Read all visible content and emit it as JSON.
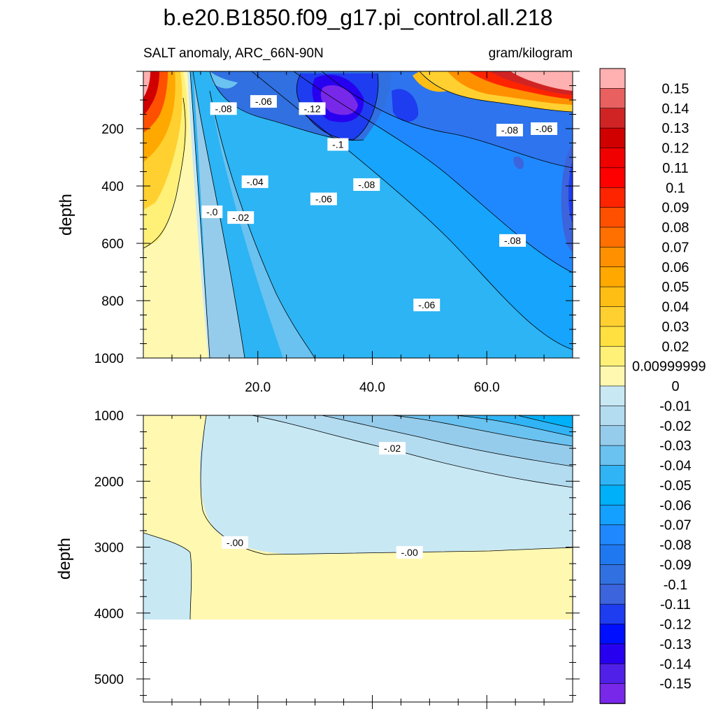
{
  "figure": {
    "title": "b.e20.B1850.f09_g17.pi_control.all.218",
    "subtitle_left": "SALT anomaly, ARC_66N-90N",
    "subtitle_right": "gram/kilogram"
  },
  "chart_data": [
    {
      "type": "heatmap",
      "panel": "upper",
      "variable": "SALT anomaly",
      "region": "ARC_66N-90N",
      "units": "gram/kilogram",
      "ylabel": "depth",
      "xlabel": "",
      "xlim": [
        0,
        75
      ],
      "ylim": [
        1000,
        0
      ],
      "x_ticks": [
        20,
        40,
        60
      ],
      "x_tick_labels": [
        "20.0",
        "40.0",
        "60.0"
      ],
      "y_ticks": [
        200,
        400,
        600,
        800,
        1000
      ],
      "y_tick_labels": [
        "200",
        "400",
        "600",
        "800",
        "1000"
      ],
      "contour_labels": [
        {
          "text": "-.08",
          "x": 14,
          "y": 130
        },
        {
          "text": "-.06",
          "x": 21,
          "y": 105
        },
        {
          "text": "-.12",
          "x": 29.5,
          "y": 130
        },
        {
          "text": "-.1",
          "x": 34,
          "y": 255
        },
        {
          "text": "-.04",
          "x": 19.5,
          "y": 385
        },
        {
          "text": "-.08",
          "x": 39,
          "y": 395
        },
        {
          "text": "-.0",
          "x": 12,
          "y": 490
        },
        {
          "text": "-.02",
          "x": 17,
          "y": 510
        },
        {
          "text": "-.06",
          "x": 31.5,
          "y": 445
        },
        {
          "text": "-.08",
          "x": 64.5,
          "y": 590
        },
        {
          "text": "-.06",
          "x": 49.5,
          "y": 815
        },
        {
          "text": "-.08",
          "x": 64,
          "y": 205
        },
        {
          "text": "-.06",
          "x": 70,
          "y": 200
        }
      ]
    },
    {
      "type": "heatmap",
      "panel": "lower",
      "variable": "SALT anomaly",
      "region": "ARC_66N-90N",
      "units": "gram/kilogram",
      "ylabel": "depth",
      "xlabel": "",
      "xlim": [
        0,
        75
      ],
      "ylim": [
        5350,
        1000
      ],
      "y_ticks": [
        1000,
        2000,
        3000,
        4000,
        5000
      ],
      "y_tick_labels": [
        "1000",
        "2000",
        "3000",
        "4000",
        "5000"
      ],
      "contour_labels": [
        {
          "text": "-.02",
          "x": 43.5,
          "y": 1500
        },
        {
          "text": "-.00",
          "x": 16,
          "y": 2930
        },
        {
          "text": "-.00",
          "x": 46.5,
          "y": 3080
        }
      ]
    }
  ],
  "colorbar": {
    "labels": [
      "0.15",
      "0.14",
      "0.13",
      "0.12",
      "0.11",
      "0.1",
      "0.09",
      "0.08",
      "0.07",
      "0.06",
      "0.05",
      "0.04",
      "0.03",
      "0.02",
      "0.00999999",
      "0",
      "-0.01",
      "-0.02",
      "-0.03",
      "-0.04",
      "-0.05",
      "-0.06",
      "-0.07",
      "-0.08",
      "-0.09",
      "-0.1",
      "-0.11",
      "-0.12",
      "-0.13",
      "-0.14",
      "-0.15"
    ],
    "colors": [
      "#ffb0b0",
      "#e86060",
      "#d02424",
      "#d00000",
      "#f00000",
      "#ff0000",
      "#ff2400",
      "#ff5000",
      "#ff7000",
      "#ff9000",
      "#ffa800",
      "#ffbe14",
      "#ffd030",
      "#ffe040",
      "#fff078",
      "#fff8b0",
      "#c8e8f4",
      "#b4dcf0",
      "#96cceb",
      "#6ac2f0",
      "#30b4f5",
      "#00b0f8",
      "#14a0ff",
      "#2088ff",
      "#2078f0",
      "#3070e0",
      "#3c64dc",
      "#1e3cf0",
      "#0010ff",
      "#2800f0",
      "#5020e8",
      "#7828e8"
    ]
  }
}
